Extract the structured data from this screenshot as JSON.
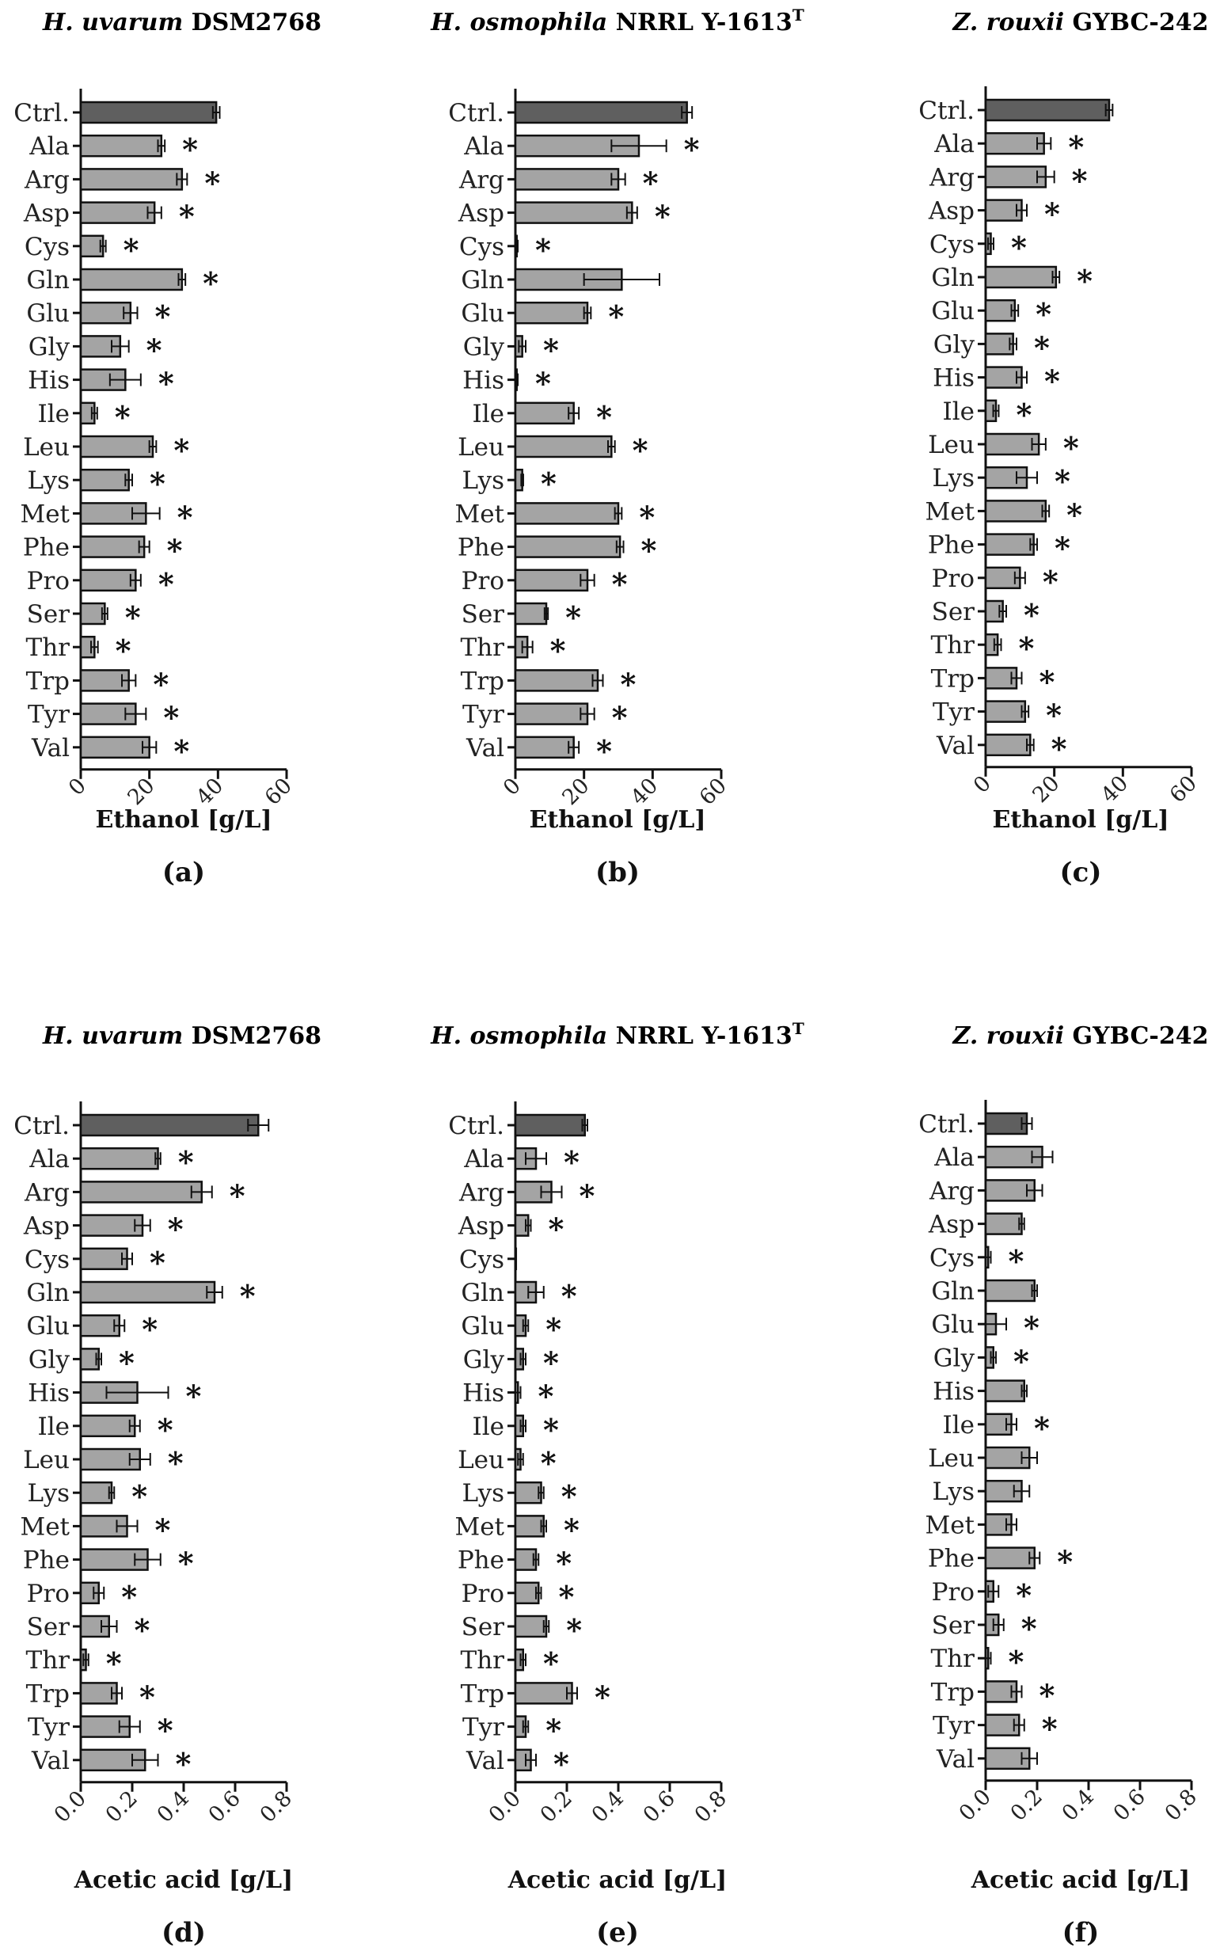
{
  "categories": [
    "Ctrl.",
    "Ala",
    "Arg",
    "Asp",
    "Cys",
    "Gln",
    "Glu",
    "Gly",
    "His",
    "Ile",
    "Leu",
    "Lys",
    "Met",
    "Phe",
    "Pro",
    "Ser",
    "Thr",
    "Trp",
    "Tyr",
    "Val"
  ],
  "colors": {
    "control_bar": "#5f5f5f",
    "bar": "#a4a4a4",
    "edge": "#111111"
  },
  "chart_data": [
    {
      "type": "bar",
      "orientation": "horizontal",
      "panel": "(a)",
      "title_species": "H. uvarum",
      "title_strain": "DSM2768",
      "title_superscript": "",
      "xlabel": "Ethanol [g/L]",
      "ylabel": "",
      "xlim": [
        0,
        60
      ],
      "xticks": [
        "0",
        "20",
        "40",
        "60"
      ],
      "values": [
        39.5,
        23.5,
        29.5,
        21.5,
        6.5,
        29.5,
        14.5,
        11.5,
        13.0,
        4.0,
        21.0,
        14.0,
        19.0,
        18.5,
        16.0,
        7.0,
        4.0,
        14.0,
        16.0,
        20.0
      ],
      "errors": [
        1.0,
        1.0,
        1.5,
        2.0,
        0.8,
        1.0,
        2.0,
        2.5,
        4.5,
        0.8,
        1.0,
        1.0,
        4.0,
        1.5,
        1.5,
        0.8,
        1.0,
        2.0,
        3.0,
        2.0
      ],
      "significance": [
        "",
        "*",
        "*",
        "*",
        "*",
        "*",
        "*",
        "*",
        "*",
        "*",
        "*",
        "*",
        "*",
        "*",
        "*",
        "*",
        "*",
        "*",
        "*",
        "*"
      ]
    },
    {
      "type": "bar",
      "orientation": "horizontal",
      "panel": "(b)",
      "title_species": "H. osmophila",
      "title_strain": "NRRL Y-1613",
      "title_superscript": "T",
      "xlabel": "Ethanol [g/L]",
      "ylabel": "",
      "xlim": [
        0,
        60
      ],
      "xticks": [
        "0",
        "20",
        "40",
        "60"
      ],
      "values": [
        50.0,
        36.0,
        30.0,
        34.0,
        0.4,
        31.0,
        21.0,
        2.0,
        0.4,
        17.0,
        28.0,
        2.0,
        30.0,
        30.5,
        21.0,
        9.0,
        3.5,
        24.0,
        21.0,
        17.0
      ],
      "errors": [
        1.5,
        8.0,
        2.0,
        1.5,
        0.3,
        11.0,
        1.0,
        1.0,
        0.3,
        1.5,
        1.0,
        0.3,
        1.0,
        1.0,
        2.0,
        0.5,
        1.5,
        1.5,
        2.0,
        1.5
      ],
      "significance": [
        "",
        "*",
        "*",
        "*",
        "*",
        "",
        "*",
        "*",
        "*",
        "*",
        "*",
        "*",
        "*",
        "*",
        "*",
        "*",
        "*",
        "*",
        "*",
        "*"
      ]
    },
    {
      "type": "bar",
      "orientation": "horizontal",
      "panel": "(c)",
      "title_species": "Z. rouxii",
      "title_strain": "GYBC-242",
      "title_superscript": "",
      "xlabel": "Ethanol [g/L]",
      "ylabel": "",
      "xlim": [
        0,
        60
      ],
      "xticks": [
        "0",
        "20",
        "40",
        "60"
      ],
      "values": [
        36.0,
        17.0,
        17.5,
        10.5,
        1.5,
        20.5,
        8.5,
        8.0,
        10.5,
        3.0,
        15.5,
        12.0,
        17.5,
        14.0,
        10.0,
        5.0,
        3.5,
        9.0,
        11.5,
        13.0
      ],
      "errors": [
        1.0,
        2.0,
        2.5,
        1.5,
        0.8,
        1.0,
        1.0,
        1.0,
        1.5,
        0.8,
        2.0,
        3.0,
        1.0,
        1.0,
        1.5,
        1.0,
        1.0,
        1.5,
        1.0,
        1.0
      ],
      "significance": [
        "",
        "*",
        "*",
        "*",
        "*",
        "*",
        "*",
        "*",
        "*",
        "*",
        "*",
        "*",
        "*",
        "*",
        "*",
        "*",
        "*",
        "*",
        "*",
        "*"
      ]
    },
    {
      "type": "bar",
      "orientation": "horizontal",
      "panel": "(d)",
      "title_species": "H. uvarum",
      "title_strain": "DSM2768",
      "title_superscript": "",
      "xlabel": "Acetic acid [g/L]",
      "ylabel": "",
      "xlim": [
        0,
        0.8
      ],
      "xticks": [
        "0.0",
        "0.2",
        "0.4",
        "0.6",
        "0.8"
      ],
      "values": [
        0.69,
        0.3,
        0.47,
        0.24,
        0.18,
        0.52,
        0.15,
        0.07,
        0.22,
        0.21,
        0.23,
        0.12,
        0.18,
        0.26,
        0.07,
        0.11,
        0.02,
        0.14,
        0.19,
        0.25
      ],
      "errors": [
        0.04,
        0.01,
        0.04,
        0.03,
        0.02,
        0.03,
        0.02,
        0.01,
        0.12,
        0.02,
        0.04,
        0.01,
        0.04,
        0.05,
        0.02,
        0.03,
        0.01,
        0.02,
        0.04,
        0.05
      ],
      "significance": [
        "",
        "*",
        "*",
        "*",
        "*",
        "*",
        "*",
        "*",
        "*",
        "*",
        "*",
        "*",
        "*",
        "*",
        "*",
        "*",
        "*",
        "*",
        "*",
        "*"
      ]
    },
    {
      "type": "bar",
      "orientation": "horizontal",
      "panel": "(e)",
      "title_species": "H. osmophila",
      "title_strain": "NRRL Y-1613",
      "title_superscript": "T",
      "xlabel": "Acetic acid [g/L]",
      "ylabel": "",
      "xlim": [
        0,
        0.8
      ],
      "xticks": [
        "0.0",
        "0.2",
        "0.4",
        "0.6",
        "0.8"
      ],
      "values": [
        0.27,
        0.08,
        0.14,
        0.05,
        0.0,
        0.08,
        0.04,
        0.03,
        0.01,
        0.03,
        0.02,
        0.1,
        0.11,
        0.08,
        0.09,
        0.12,
        0.03,
        0.22,
        0.04,
        0.06
      ],
      "errors": [
        0.01,
        0.04,
        0.04,
        0.01,
        0.0,
        0.03,
        0.01,
        0.01,
        0.01,
        0.01,
        0.01,
        0.01,
        0.01,
        0.01,
        0.01,
        0.01,
        0.01,
        0.02,
        0.01,
        0.02
      ],
      "significance": [
        "",
        "*",
        "*",
        "*",
        "",
        "*",
        "*",
        "*",
        "*",
        "*",
        "*",
        "*",
        "*",
        "*",
        "*",
        "*",
        "*",
        "*",
        "*",
        "*"
      ]
    },
    {
      "type": "bar",
      "orientation": "horizontal",
      "panel": "(f)",
      "title_species": "Z. rouxii",
      "title_strain": "GYBC-242",
      "title_superscript": "",
      "xlabel": "Acetic acid [g/L]",
      "ylabel": "",
      "xlim": [
        0,
        0.8
      ],
      "xticks": [
        "0.0",
        "0.2",
        "0.4",
        "0.6",
        "0.8"
      ],
      "values": [
        0.16,
        0.22,
        0.19,
        0.14,
        0.01,
        0.19,
        0.04,
        0.03,
        0.15,
        0.1,
        0.17,
        0.14,
        0.1,
        0.19,
        0.03,
        0.05,
        0.01,
        0.12,
        0.13,
        0.17
      ],
      "errors": [
        0.02,
        0.04,
        0.03,
        0.01,
        0.01,
        0.01,
        0.04,
        0.01,
        0.01,
        0.02,
        0.03,
        0.03,
        0.02,
        0.02,
        0.02,
        0.02,
        0.01,
        0.02,
        0.02,
        0.03
      ],
      "significance": [
        "",
        "",
        "",
        "",
        "*",
        "",
        "*",
        "*",
        "",
        "*",
        "",
        "",
        "",
        "*",
        "*",
        "*",
        "*",
        "*",
        "*",
        ""
      ]
    }
  ]
}
